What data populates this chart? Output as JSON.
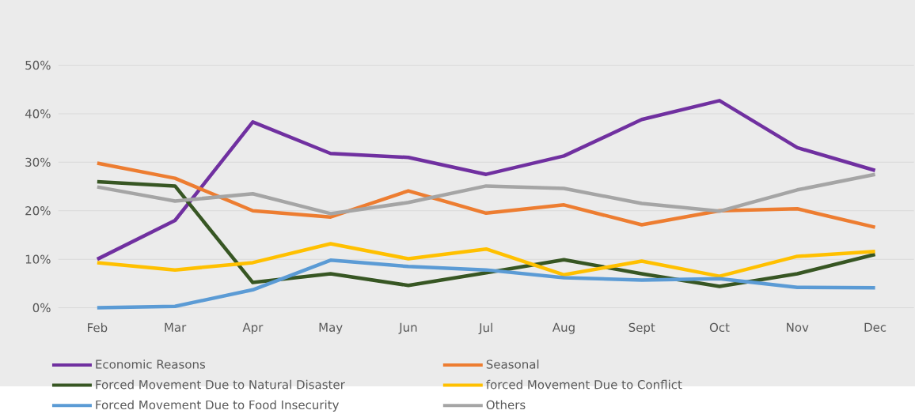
{
  "chart_data": {
    "type": "line",
    "categories": [
      "Feb",
      "Mar",
      "Apr",
      "May",
      "Jun",
      "Jul",
      "Aug",
      "Sept",
      "Oct",
      "Nov",
      "Dec"
    ],
    "series": [
      {
        "name": "Economic Reasons",
        "color": "#7030a0",
        "values": [
          10,
          18,
          38.3,
          31.8,
          31,
          27.5,
          31.3,
          38.8,
          42.7,
          33,
          28.3
        ]
      },
      {
        "name": "Seasonal",
        "color": "#ed7d31",
        "values": [
          29.8,
          26.7,
          20,
          18.7,
          24.1,
          19.5,
          21.2,
          17.1,
          20,
          20.4,
          16.6
        ]
      },
      {
        "name": "Forced Movement Due to Natural Disaster",
        "color": "#375623",
        "values": [
          26,
          25.1,
          5.2,
          7,
          4.6,
          7.2,
          9.9,
          7,
          4.4,
          7,
          11
        ]
      },
      {
        "name": "forced Movement Due to Conflict",
        "color": "#ffc000",
        "values": [
          9.3,
          7.8,
          9.3,
          13.2,
          10.1,
          12.1,
          6.8,
          9.6,
          6.5,
          10.6,
          11.6
        ]
      },
      {
        "name": "Forced Movement Due to Food Insecurity",
        "color": "#5b9bd5",
        "values": [
          0,
          0.3,
          3.7,
          9.8,
          8.5,
          7.8,
          6.2,
          5.7,
          6,
          4.2,
          4.1
        ]
      },
      {
        "name": "Others",
        "color": "#a5a5a5",
        "values": [
          24.9,
          22,
          23.5,
          19.4,
          21.7,
          25.1,
          24.6,
          21.5,
          19.9,
          24.3,
          27.5
        ]
      }
    ],
    "ylim": [
      0,
      50
    ],
    "yticks": [
      {
        "value": 0,
        "label": "0%"
      },
      {
        "value": 10,
        "label": "10%"
      },
      {
        "value": 20,
        "label": "20%"
      },
      {
        "value": 30,
        "label": "30%"
      },
      {
        "value": 40,
        "label": "40%"
      },
      {
        "value": 50,
        "label": "50%"
      }
    ],
    "grid": "y",
    "legend": "bottom",
    "marker": "none",
    "line_style": "solid"
  }
}
